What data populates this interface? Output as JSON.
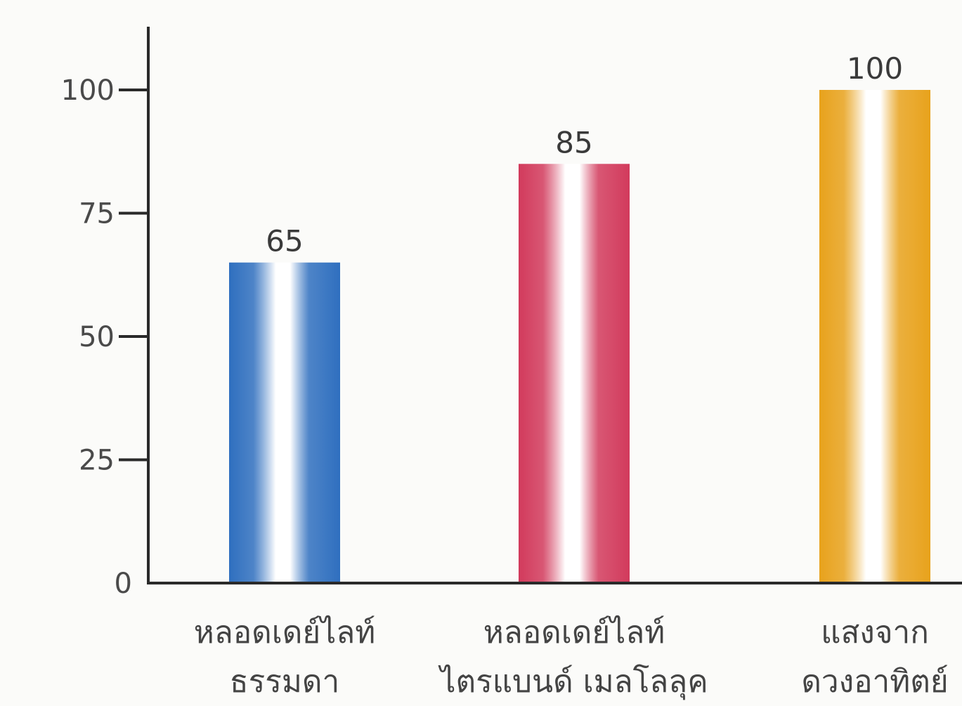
{
  "chart_data": {
    "type": "bar",
    "categories": [
      [
        "หลอดเดย์ไลท์",
        "ธรรมดา"
      ],
      [
        "หลอดเดย์ไลท์",
        "ไตรแบนด์ เมลโลลุค"
      ],
      [
        "แสงจาก",
        "ดวงอาทิตย์"
      ]
    ],
    "values": [
      65,
      85,
      100
    ],
    "data_labels": [
      "65",
      "85",
      "100"
    ],
    "yticks": [
      0,
      25,
      50,
      75,
      100
    ],
    "ytick_labels": [
      "0",
      "25",
      "50",
      "75",
      "100"
    ],
    "ylim": [
      0,
      110
    ],
    "title": "",
    "xlabel": "",
    "ylabel": "",
    "grid": false,
    "bar_colors": [
      "#2f6fbf",
      "#d23a5c",
      "#e8a21c"
    ]
  }
}
